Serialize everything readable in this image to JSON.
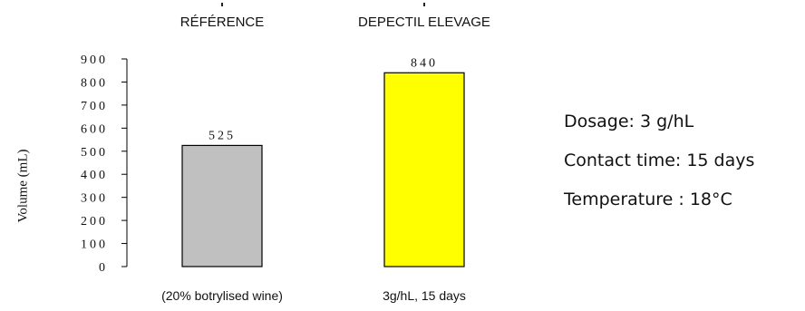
{
  "chart_data": {
    "type": "bar",
    "categories_top": [
      "RÉFÉRENCE",
      "DEPECTIL ELEVAGE"
    ],
    "categories": [
      "(20% botrylised wine)",
      "3g/hL, 15 days"
    ],
    "values": [
      525,
      840
    ],
    "data_labels": [
      "525",
      "840"
    ],
    "colors": [
      "#c0c0c0",
      "#ffff00"
    ],
    "ylabel": "Volume (mL)",
    "ylim": [
      0,
      900
    ],
    "yticks": [
      0,
      100,
      200,
      300,
      400,
      500,
      600,
      700,
      800,
      900
    ],
    "ytick_labels": [
      "0",
      "100",
      "200",
      "300",
      "400",
      "500",
      "600",
      "700",
      "800",
      "900"
    ],
    "grid": false,
    "legend": false
  },
  "annotations": {
    "dosage": "Dosage: 3 g/hL",
    "contact_time": "Contact time: 15 days",
    "temperature": "Temperature : 18°C"
  }
}
